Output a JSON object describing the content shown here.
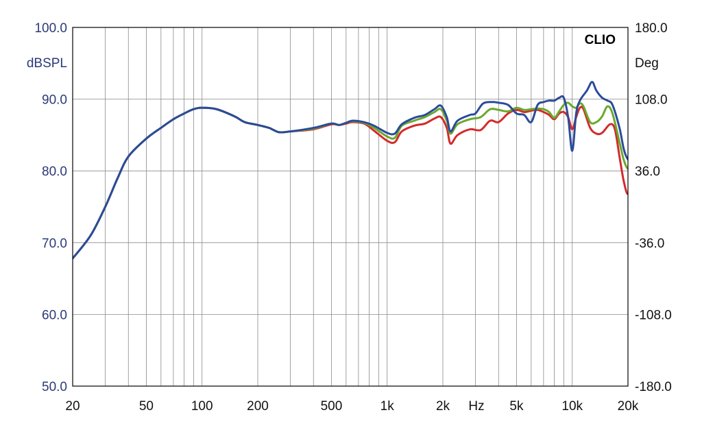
{
  "chart_data": {
    "type": "line",
    "brand": "CLIO",
    "left_axis": {
      "unit": "dBSPL",
      "ylim": [
        50,
        100
      ],
      "ticks": [
        100,
        90,
        80,
        70,
        60,
        50
      ],
      "tick_labels": [
        "100.0",
        "90.0",
        "80.0",
        "70.0",
        "60.0",
        "50.0"
      ]
    },
    "right_axis": {
      "unit": "Deg",
      "ylim": [
        -180,
        180
      ],
      "tick_labels": [
        "180.0",
        "108.0",
        "36.0",
        "-36.0",
        "-108.0",
        "-180.0"
      ]
    },
    "x_axis": {
      "scale": "log",
      "xlim": [
        20,
        20000
      ],
      "unit": "Hz",
      "ticks": [
        20,
        50,
        100,
        200,
        500,
        1000,
        2000,
        5000,
        10000,
        20000
      ],
      "tick_labels": [
        "20",
        "50",
        "100",
        "200",
        "500",
        "1k",
        "2k",
        "5k",
        "10k",
        "20k"
      ],
      "minor_gridlines": [
        30,
        40,
        50,
        60,
        70,
        80,
        90,
        100,
        200,
        300,
        400,
        500,
        600,
        700,
        800,
        900,
        1000,
        2000,
        3000,
        4000,
        5000,
        6000,
        7000,
        8000,
        9000,
        10000
      ]
    },
    "grid": true,
    "series": [
      {
        "color": "#d42a2a",
        "points": [
          [
            20,
            67.8
          ],
          [
            25,
            71
          ],
          [
            30,
            75
          ],
          [
            35,
            79
          ],
          [
            40,
            82
          ],
          [
            50,
            84.5
          ],
          [
            60,
            86
          ],
          [
            70,
            87.2
          ],
          [
            80,
            88
          ],
          [
            90,
            88.6
          ],
          [
            100,
            88.8
          ],
          [
            120,
            88.6
          ],
          [
            150,
            87.6
          ],
          [
            170,
            86.8
          ],
          [
            200,
            86.4
          ],
          [
            230,
            86
          ],
          [
            260,
            85.4
          ],
          [
            300,
            85.5
          ],
          [
            400,
            85.8
          ],
          [
            500,
            86.5
          ],
          [
            550,
            86.4
          ],
          [
            600,
            86.6
          ],
          [
            650,
            86.8
          ],
          [
            750,
            86.6
          ],
          [
            850,
            85.6
          ],
          [
            1000,
            84.2
          ],
          [
            1100,
            84
          ],
          [
            1200,
            85.5
          ],
          [
            1400,
            86.3
          ],
          [
            1600,
            86.6
          ],
          [
            1800,
            87.3
          ],
          [
            1950,
            87.5
          ],
          [
            2100,
            86
          ],
          [
            2200,
            83.8
          ],
          [
            2400,
            85
          ],
          [
            2800,
            85.8
          ],
          [
            3200,
            85.7
          ],
          [
            3600,
            87
          ],
          [
            4000,
            86.8
          ],
          [
            4500,
            88
          ],
          [
            5000,
            88.5
          ],
          [
            5500,
            88.2
          ],
          [
            6000,
            88.4
          ],
          [
            6500,
            88.5
          ],
          [
            7000,
            88.2
          ],
          [
            7500,
            87.8
          ],
          [
            8000,
            87.2
          ],
          [
            8500,
            88
          ],
          [
            9000,
            88.2
          ],
          [
            9500,
            87.5
          ],
          [
            10000,
            85.8
          ],
          [
            10500,
            87.5
          ],
          [
            11000,
            88.8
          ],
          [
            11500,
            88.6
          ],
          [
            12500,
            86
          ],
          [
            13500,
            85.2
          ],
          [
            14500,
            85.3
          ],
          [
            16000,
            86.5
          ],
          [
            17000,
            85.8
          ],
          [
            18000,
            82
          ],
          [
            19000,
            78.5
          ],
          [
            20000,
            76.8
          ],
          [
            21000,
            79
          ],
          [
            22000,
            81
          ]
        ]
      },
      {
        "color": "#6aa82e",
        "points": [
          [
            20,
            67.8
          ],
          [
            25,
            71
          ],
          [
            30,
            75
          ],
          [
            35,
            79
          ],
          [
            40,
            82
          ],
          [
            50,
            84.5
          ],
          [
            60,
            86
          ],
          [
            70,
            87.2
          ],
          [
            80,
            88
          ],
          [
            90,
            88.6
          ],
          [
            100,
            88.8
          ],
          [
            120,
            88.6
          ],
          [
            150,
            87.6
          ],
          [
            170,
            86.8
          ],
          [
            200,
            86.4
          ],
          [
            230,
            86
          ],
          [
            260,
            85.4
          ],
          [
            300,
            85.5
          ],
          [
            400,
            85.9
          ],
          [
            500,
            86.6
          ],
          [
            550,
            86.4
          ],
          [
            600,
            86.7
          ],
          [
            650,
            86.9
          ],
          [
            750,
            86.7
          ],
          [
            850,
            86
          ],
          [
            1000,
            84.8
          ],
          [
            1100,
            84.6
          ],
          [
            1200,
            86.3
          ],
          [
            1400,
            87
          ],
          [
            1600,
            87.5
          ],
          [
            1800,
            88.2
          ],
          [
            1950,
            88.6
          ],
          [
            2100,
            87
          ],
          [
            2200,
            85.2
          ],
          [
            2400,
            86.5
          ],
          [
            2800,
            87.2
          ],
          [
            3200,
            87.5
          ],
          [
            3600,
            88.6
          ],
          [
            4000,
            88.5
          ],
          [
            4500,
            88.3
          ],
          [
            5000,
            88.8
          ],
          [
            5500,
            88.5
          ],
          [
            6000,
            88.6
          ],
          [
            6500,
            88.7
          ],
          [
            7000,
            88.6
          ],
          [
            7500,
            88.2
          ],
          [
            8000,
            87.4
          ],
          [
            8500,
            88.3
          ],
          [
            9000,
            89.2
          ],
          [
            9500,
            89.5
          ],
          [
            10000,
            89
          ],
          [
            10500,
            88.8
          ],
          [
            11000,
            89.4
          ],
          [
            11500,
            89
          ],
          [
            12500,
            86.8
          ],
          [
            13500,
            86.8
          ],
          [
            14500,
            87.6
          ],
          [
            15500,
            89
          ],
          [
            16500,
            88
          ],
          [
            18000,
            84
          ],
          [
            19000,
            81.5
          ],
          [
            20000,
            80.3
          ],
          [
            21000,
            81
          ],
          [
            22000,
            81.8
          ]
        ]
      },
      {
        "color": "#2b4b9a",
        "points": [
          [
            20,
            67.8
          ],
          [
            25,
            71
          ],
          [
            30,
            75
          ],
          [
            35,
            79
          ],
          [
            40,
            82
          ],
          [
            50,
            84.5
          ],
          [
            60,
            86
          ],
          [
            70,
            87.2
          ],
          [
            80,
            88
          ],
          [
            90,
            88.6
          ],
          [
            100,
            88.8
          ],
          [
            120,
            88.6
          ],
          [
            150,
            87.6
          ],
          [
            170,
            86.8
          ],
          [
            200,
            86.4
          ],
          [
            230,
            86
          ],
          [
            260,
            85.4
          ],
          [
            300,
            85.5
          ],
          [
            400,
            86
          ],
          [
            500,
            86.6
          ],
          [
            550,
            86.4
          ],
          [
            600,
            86.7
          ],
          [
            650,
            87
          ],
          [
            750,
            86.8
          ],
          [
            850,
            86.3
          ],
          [
            1000,
            85.3
          ],
          [
            1100,
            85.2
          ],
          [
            1200,
            86.5
          ],
          [
            1400,
            87.4
          ],
          [
            1600,
            87.8
          ],
          [
            1800,
            88.6
          ],
          [
            1950,
            89.1
          ],
          [
            2100,
            87.5
          ],
          [
            2200,
            85.5
          ],
          [
            2400,
            87
          ],
          [
            2800,
            87.8
          ],
          [
            3000,
            88
          ],
          [
            3300,
            89.4
          ],
          [
            3700,
            89.6
          ],
          [
            4000,
            89.5
          ],
          [
            4500,
            89.2
          ],
          [
            5000,
            88
          ],
          [
            5500,
            87.8
          ],
          [
            6000,
            86.8
          ],
          [
            6500,
            89.2
          ],
          [
            7000,
            89.6
          ],
          [
            7500,
            89.8
          ],
          [
            8000,
            89.8
          ],
          [
            8500,
            90.2
          ],
          [
            9000,
            90.2
          ],
          [
            9500,
            87.5
          ],
          [
            10000,
            82.8
          ],
          [
            10500,
            88
          ],
          [
            11000,
            89.8
          ],
          [
            12000,
            91.2
          ],
          [
            12800,
            92.4
          ],
          [
            13500,
            91.2
          ],
          [
            14500,
            90.2
          ],
          [
            15500,
            89.8
          ],
          [
            16500,
            89.2
          ],
          [
            18000,
            86
          ],
          [
            19000,
            83
          ],
          [
            20000,
            81.6
          ],
          [
            21000,
            81.5
          ],
          [
            22000,
            81.5
          ]
        ]
      }
    ]
  }
}
